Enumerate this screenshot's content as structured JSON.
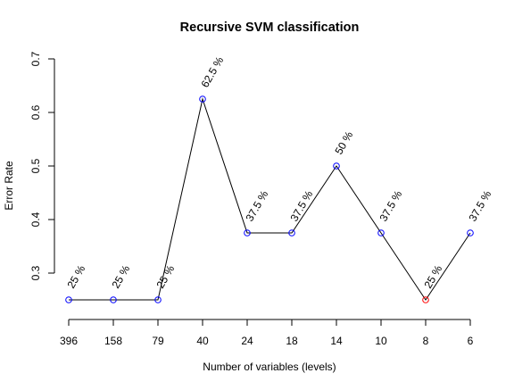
{
  "chart_data": {
    "type": "line",
    "title": "Recursive SVM classification",
    "xlabel": "Number of variables (levels)",
    "ylabel": "Error Rate",
    "categories": [
      "396",
      "158",
      "79",
      "40",
      "24",
      "18",
      "14",
      "10",
      "8",
      "6"
    ],
    "series": [
      {
        "values": [
          0.25,
          0.25,
          0.25,
          0.625,
          0.375,
          0.375,
          0.5,
          0.375,
          0.25,
          0.375
        ],
        "point_labels": [
          "25 %",
          "25 %",
          "25 %",
          "62.5 %",
          "37.5 %",
          "37.5 %",
          "50 %",
          "37.5 %",
          "25 %",
          "37.5 %"
        ],
        "highlight_index": 8
      }
    ],
    "ylim": [
      0.3,
      0.7
    ],
    "yticks": [
      "0.3",
      "0.4",
      "0.5",
      "0.6",
      "0.7"
    ],
    "grid": false,
    "colors": {
      "line": "#000000",
      "point": "#0000ff",
      "highlight": "#ff0000"
    }
  }
}
